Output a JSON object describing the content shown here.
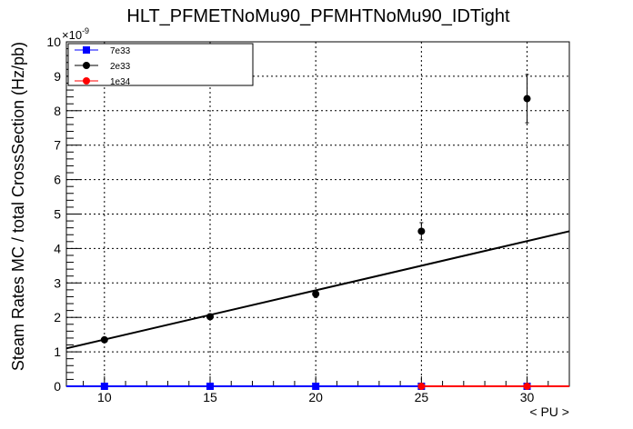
{
  "chart_data": {
    "type": "scatter",
    "title": "HLT_PFMETNoMu90_PFMHTNoMu90_IDTight",
    "xlabel": "< PU >",
    "ylabel": "Steam Rates MC / total CrossSection (Hz/pb)",
    "y_exponent_label": "×10",
    "y_exponent_power": "-9",
    "xlim": [
      8.2,
      32.0
    ],
    "ylim": [
      0,
      10
    ],
    "y_scale_factor": 1e-09,
    "x_ticks": [
      "10",
      "15",
      "20",
      "25",
      "30"
    ],
    "y_ticks": [
      "0",
      "1",
      "2",
      "3",
      "4",
      "5",
      "6",
      "7",
      "8",
      "9",
      "10"
    ],
    "grid": true,
    "legend_position": "top-left",
    "series": [
      {
        "name": "7e33",
        "color": "#0000ff",
        "marker": "square",
        "x": [
          10,
          15,
          20,
          25,
          30
        ],
        "y": [
          0,
          0,
          0,
          0,
          0
        ],
        "line_x": [
          8.2,
          25
        ]
      },
      {
        "name": "2e33",
        "color": "#000000",
        "marker": "circle",
        "x": [
          10,
          15,
          20,
          25,
          30
        ],
        "y": [
          1.35,
          2.02,
          2.68,
          4.5,
          8.35
        ],
        "yerr": [
          0.07,
          0.08,
          0.1,
          0.25,
          0.7
        ]
      },
      {
        "name": "1e34",
        "color": "#ff0000",
        "marker": "circle",
        "x": [
          25,
          30
        ],
        "y": [
          0,
          0
        ],
        "line_x": [
          25,
          32.0
        ]
      }
    ],
    "fit": {
      "color": "#000000",
      "x": [
        8.2,
        32.0
      ],
      "y": [
        1.1,
        4.5
      ]
    }
  }
}
